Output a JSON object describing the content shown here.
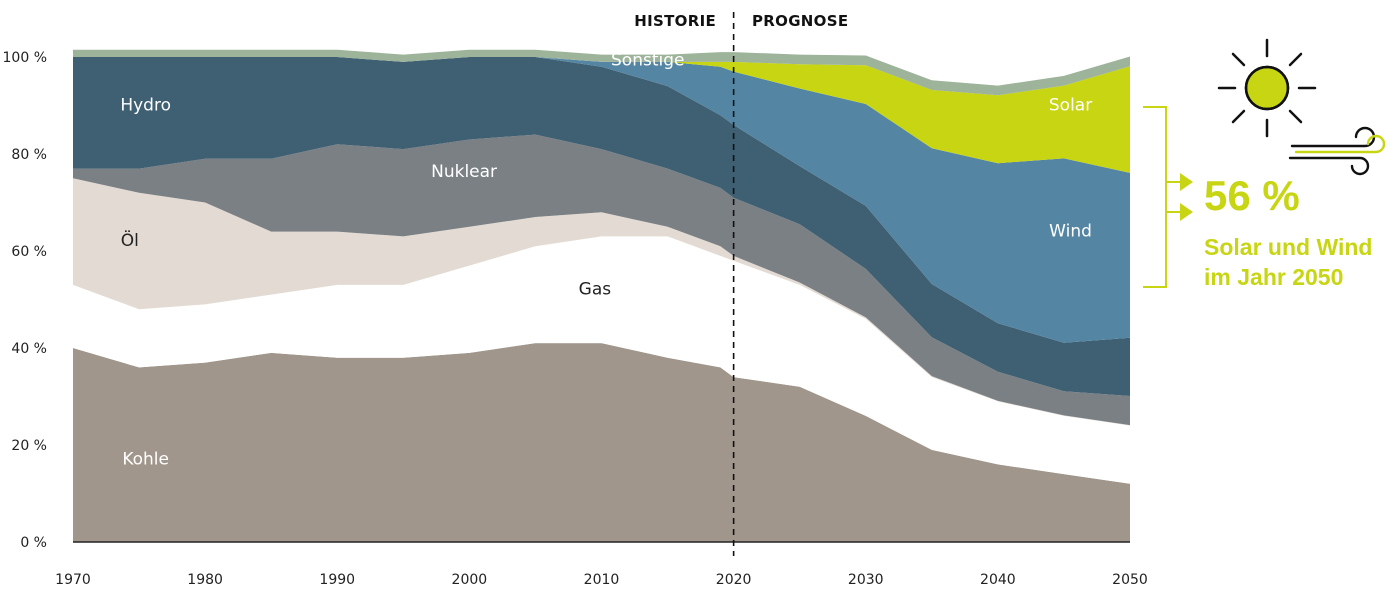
{
  "period_labels": {
    "history": "HISTORIE",
    "forecast": "PROGNOSE"
  },
  "callout": {
    "value": "56 %",
    "line1": "Solar und Wind",
    "line2": "im Jahr 2050"
  },
  "icons": [
    "sun-icon",
    "wind-icon",
    "bracket-arrows-icon"
  ],
  "colors": {
    "Kohle": "#a0968c",
    "Gas": "#ffffff",
    "Öl": "#e3dbd3",
    "Nuklear": "#7b8084",
    "Hydro": "#3f6073",
    "Wind": "#5486a4",
    "Solar": "#c7d513",
    "Sonstige": "#9db39a",
    "accent": "#c7d513",
    "axis": "#222222"
  },
  "chart_data": {
    "type": "area",
    "stacked": true,
    "x": [
      1970,
      1975,
      1980,
      1985,
      1990,
      1995,
      2000,
      2005,
      2010,
      2015,
      2019,
      2020,
      2025,
      2030,
      2035,
      2040,
      2045,
      2050
    ],
    "xticks": [
      "1970",
      "1980",
      "1990",
      "2000",
      "2010",
      "2020",
      "2030",
      "2040",
      "2050"
    ],
    "yticks": [
      "0 %",
      "20 %",
      "40 %",
      "60 %",
      "80 %",
      "100 %"
    ],
    "ylim": [
      0,
      100
    ],
    "xlim": [
      1970,
      2050
    ],
    "forecast_start": 2020,
    "grid": false,
    "series": [
      {
        "name": "Kohle",
        "values": [
          40,
          36,
          37,
          39,
          38,
          38,
          39,
          41,
          41,
          38,
          36,
          34,
          32,
          26,
          19,
          16,
          14,
          12
        ]
      },
      {
        "name": "Gas",
        "values": [
          13,
          12,
          12,
          12,
          15,
          15,
          18,
          20,
          22,
          25,
          23,
          24,
          21,
          20,
          15,
          13,
          12,
          12
        ]
      },
      {
        "name": "Öl",
        "values": [
          22,
          24,
          21,
          13,
          11,
          10,
          8,
          6,
          5,
          2,
          2,
          1,
          0.5,
          0.3,
          0.2,
          0.1,
          0.1,
          0.1
        ]
      },
      {
        "name": "Nuklear",
        "values": [
          2,
          5,
          9,
          15,
          18,
          18,
          18,
          17,
          13,
          12,
          12,
          12,
          12,
          10,
          8,
          6,
          5,
          6
        ]
      },
      {
        "name": "Hydro",
        "values": [
          23,
          23,
          21,
          21,
          18,
          18,
          17,
          16,
          17,
          17,
          15,
          15,
          12,
          13,
          11,
          10,
          10,
          12
        ]
      },
      {
        "name": "Wind",
        "values": [
          0,
          0,
          0,
          0,
          0,
          0,
          0,
          0,
          1,
          5,
          10,
          11,
          16,
          21,
          28,
          33,
          38,
          34
        ]
      },
      {
        "name": "Solar",
        "values": [
          0,
          0,
          0,
          0,
          0,
          0,
          0,
          0,
          0,
          0,
          1,
          2,
          5,
          8,
          12,
          14,
          15,
          22
        ]
      },
      {
        "name": "Sonstige",
        "values": [
          1.5,
          1.5,
          1.5,
          1.5,
          1.5,
          1.5,
          1.5,
          1.5,
          1.5,
          1.5,
          2,
          2,
          2,
          2,
          2,
          2,
          2,
          2
        ]
      }
    ],
    "labels": {
      "Kohle": "Kohle",
      "Gas": "Gas",
      "Öl": "Öl",
      "Nuklear": "Nuklear",
      "Hydro": "Hydro",
      "Wind": "Wind",
      "Solar": "Solar",
      "Sonstige": "Sonstige"
    }
  }
}
